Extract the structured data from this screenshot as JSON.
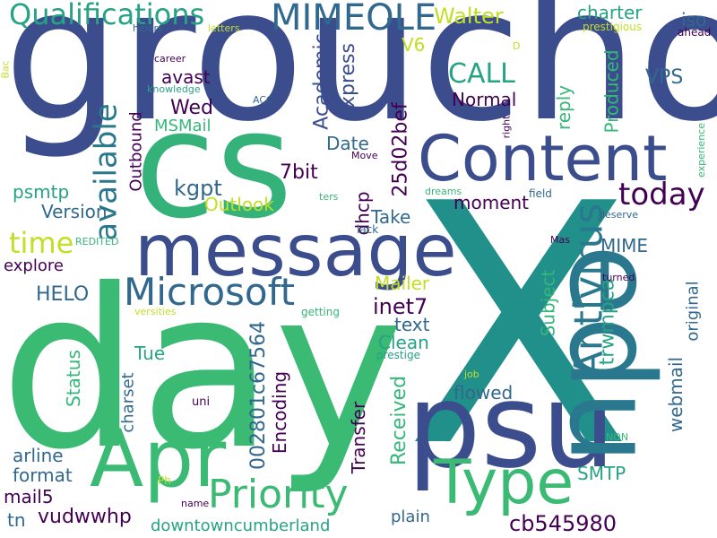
{
  "palette": {
    "dark_purple": "#440154",
    "indigo": "#3b528b",
    "teal": "#21918c",
    "green": "#35b779",
    "lime": "#b5de2b",
    "slate": "#414487",
    "navy": "#31688e"
  },
  "words": [
    {
      "text": "groucho",
      "color": "#3b4d8c"
    },
    {
      "text": "X",
      "color": "#22908a"
    },
    {
      "text": "day",
      "color": "#3bba74"
    },
    {
      "text": "cs",
      "color": "#34b27a"
    },
    {
      "text": "psu",
      "color": "#3b4d8c"
    },
    {
      "text": "edu",
      "color": "#2a788e"
    },
    {
      "text": "message",
      "color": "#3b4d8c"
    },
    {
      "text": "Content",
      "color": "#3b4d8c"
    },
    {
      "text": "Apr",
      "color": "#3bba74"
    },
    {
      "text": "Type",
      "color": "#3bba74"
    },
    {
      "text": "MIMEOLE",
      "color": "#31688e"
    },
    {
      "text": "Qualifications",
      "color": "#26a284"
    },
    {
      "text": "Microsoft",
      "color": "#31688e"
    },
    {
      "text": "Priority",
      "color": "#3bba74"
    },
    {
      "text": "Antivirus",
      "color": "#2a788e"
    },
    {
      "text": "available",
      "color": "#2a788e"
    },
    {
      "text": "today",
      "color": "#440154"
    },
    {
      "text": "time",
      "color": "#c2df23"
    },
    {
      "text": "Walter",
      "color": "#c2df23"
    },
    {
      "text": "charter",
      "color": "#26a284"
    },
    {
      "text": "iso",
      "color": "#31688e"
    },
    {
      "text": "CALL",
      "color": "#26a284"
    },
    {
      "text": "V6",
      "color": "#c2df23"
    },
    {
      "text": "Normal",
      "color": "#440154"
    },
    {
      "text": "VPS",
      "color": "#31688e"
    },
    {
      "text": "Academic",
      "color": "#3b4d8c"
    },
    {
      "text": "Express",
      "color": "#3b4d8c"
    },
    {
      "text": "25d02bef",
      "color": "#440154"
    },
    {
      "text": "Produced",
      "color": "#35b779"
    },
    {
      "text": "reply",
      "color": "#35b779"
    },
    {
      "text": "Wed",
      "color": "#440154"
    },
    {
      "text": "avast",
      "color": "#440154"
    },
    {
      "text": "MSMail",
      "color": "#35b779"
    },
    {
      "text": "kgpt",
      "color": "#31688e"
    },
    {
      "text": "Outlook",
      "color": "#c2df23"
    },
    {
      "text": "7bit",
      "color": "#440154"
    },
    {
      "text": "Date",
      "color": "#31688e"
    },
    {
      "text": "dhcp",
      "color": "#440154"
    },
    {
      "text": "Take",
      "color": "#31688e"
    },
    {
      "text": "moment",
      "color": "#440154"
    },
    {
      "text": "psmtp",
      "color": "#26a284"
    },
    {
      "text": "Version",
      "color": "#31688e"
    },
    {
      "text": "Outbound",
      "color": "#440154"
    },
    {
      "text": "explore",
      "color": "#440154"
    },
    {
      "text": "MIME",
      "color": "#31688e"
    },
    {
      "text": "HELO",
      "color": "#31688e"
    },
    {
      "text": "Mailer",
      "color": "#c2df23"
    },
    {
      "text": "inet7",
      "color": "#440154"
    },
    {
      "text": "text",
      "color": "#31688e"
    },
    {
      "text": "Clean",
      "color": "#26a284"
    },
    {
      "text": "Subject",
      "color": "#35b779"
    },
    {
      "text": "trwmpca",
      "color": "#26a284"
    },
    {
      "text": "webmail",
      "color": "#31688e"
    },
    {
      "text": "original",
      "color": "#31688e"
    },
    {
      "text": "Tue",
      "color": "#26a284"
    },
    {
      "text": "Status",
      "color": "#35b779"
    },
    {
      "text": "charset",
      "color": "#31688e"
    },
    {
      "text": "002801c67564",
      "color": "#31688e"
    },
    {
      "text": "Encoding",
      "color": "#440154"
    },
    {
      "text": "Transfer",
      "color": "#440154"
    },
    {
      "text": "Received",
      "color": "#35b779"
    },
    {
      "text": "flowed",
      "color": "#31688e"
    },
    {
      "text": "arline",
      "color": "#31688e"
    },
    {
      "text": "format",
      "color": "#31688e"
    },
    {
      "text": "mail5",
      "color": "#440154"
    },
    {
      "text": "vudwwhp",
      "color": "#440154"
    },
    {
      "text": "tn",
      "color": "#31688e"
    },
    {
      "text": "downtowncumberland",
      "color": "#26a284"
    },
    {
      "text": "SMTP",
      "color": "#26a284"
    },
    {
      "text": "plain",
      "color": "#31688e"
    },
    {
      "text": "cb545980",
      "color": "#440154"
    },
    {
      "text": "uni",
      "color": "#440154"
    },
    {
      "text": "name",
      "color": "#440154"
    },
    {
      "text": "Ph",
      "color": "#c2df23"
    },
    {
      "text": "NON",
      "color": "#35b779"
    },
    {
      "text": "job",
      "color": "#c2df23"
    },
    {
      "text": "prestige",
      "color": "#26a284"
    },
    {
      "text": "getting",
      "color": "#35b779"
    },
    {
      "text": "versities",
      "color": "#c2df23"
    },
    {
      "text": "REDITED",
      "color": "#35b779"
    },
    {
      "text": "lack",
      "color": "#31688e"
    },
    {
      "text": "ters",
      "color": "#35b779"
    },
    {
      "text": "dreams",
      "color": "#35b779"
    },
    {
      "text": "field",
      "color": "#31688e"
    },
    {
      "text": "Mas",
      "color": "#440154"
    },
    {
      "text": "deserve",
      "color": "#31688e"
    },
    {
      "text": "turned",
      "color": "#440154"
    },
    {
      "text": "Move",
      "color": "#440154"
    },
    {
      "text": "right",
      "color": "#440154"
    },
    {
      "text": "ACC",
      "color": "#31688e"
    },
    {
      "text": "knowledge",
      "color": "#26a284"
    },
    {
      "text": "career",
      "color": "#440154"
    },
    {
      "text": "helors",
      "color": "#31688e"
    },
    {
      "text": "letters",
      "color": "#c2df23"
    },
    {
      "text": "Bac",
      "color": "#c2df23"
    },
    {
      "text": "D",
      "color": "#c2df23"
    },
    {
      "text": "prestigious",
      "color": "#c2df23"
    },
    {
      "text": "ahead",
      "color": "#440154"
    },
    {
      "text": "experience",
      "color": "#35b779"
    }
  ]
}
